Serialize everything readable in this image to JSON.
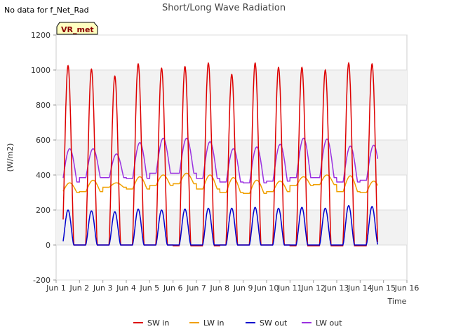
{
  "chart_data": {
    "type": "line",
    "title": "Short/Long Wave Radiation",
    "note": "No data for f_Net_Rad",
    "badge": "VR_met",
    "xlabel": "Time",
    "ylabel": "(W/m2)",
    "ylim": [
      -200,
      1200
    ],
    "yticks": [
      -200,
      0,
      200,
      400,
      600,
      800,
      1000,
      1200
    ],
    "xlim": [
      1,
      16
    ],
    "xtick_labels": [
      "Jun 1",
      "Jun 2",
      "Jun 3",
      "Jun 4",
      "Jun 5",
      "Jun 6",
      "Jun 7",
      "Jun 8",
      "Jun 9",
      "Jun 10",
      "Jun 11",
      "Jun 12",
      "Jun 13",
      "Jun 14",
      "Jun 15",
      "Jun 16"
    ],
    "grid": true,
    "legend_position": "bottom",
    "days": [
      1,
      2,
      3,
      4,
      5,
      6,
      7,
      8,
      9,
      10,
      11,
      12,
      13,
      14
    ],
    "series": [
      {
        "name": "SW in",
        "color": "#dd0000",
        "daily_peak": [
          1025,
          1005,
          965,
          1035,
          1010,
          1020,
          1040,
          975,
          1040,
          1015,
          1015,
          1000,
          1040,
          1035
        ],
        "daily_min": [
          0,
          0,
          0,
          0,
          0,
          -5,
          -5,
          0,
          0,
          0,
          -5,
          -5,
          -5,
          -5
        ]
      },
      {
        "name": "LW in",
        "color": "#f0a000",
        "daily_peak": [
          355,
          370,
          355,
          390,
          400,
          410,
          400,
          385,
          370,
          365,
          390,
          400,
          395,
          365
        ],
        "daily_min": [
          300,
          305,
          330,
          320,
          340,
          350,
          320,
          300,
          295,
          305,
          340,
          345,
          305,
          300
        ]
      },
      {
        "name": "SW out",
        "color": "#0000cc",
        "daily_peak": [
          200,
          195,
          190,
          205,
          200,
          205,
          210,
          210,
          215,
          210,
          215,
          210,
          225,
          220
        ],
        "daily_min": [
          0,
          0,
          0,
          0,
          0,
          0,
          0,
          0,
          0,
          0,
          0,
          0,
          0,
          0
        ]
      },
      {
        "name": "LW out",
        "color": "#9a30e0",
        "daily_peak": [
          550,
          550,
          520,
          585,
          610,
          610,
          590,
          550,
          560,
          575,
          610,
          605,
          565,
          570
        ],
        "daily_min": [
          360,
          385,
          385,
          380,
          410,
          410,
          380,
          360,
          355,
          365,
          385,
          385,
          360,
          370
        ]
      }
    ]
  }
}
